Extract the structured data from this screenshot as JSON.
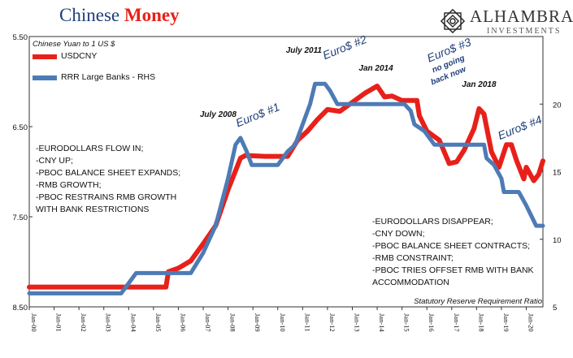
{
  "title": {
    "part1": "Chinese",
    "part2": "Money"
  },
  "logo": {
    "name": "ALHAMBRA",
    "sub": "INVESTMENTS"
  },
  "notes": {
    "left": [
      "-EURODOLLARS FLOW IN;",
      "-CNY UP;",
      "-PBOC BALANCE SHEET EXPANDS;",
      "-RMB GROWTH;",
      "-PBOC RESTRAINS RMB GROWTH",
      "WITH BANK RESTRICTIONS"
    ],
    "right": [
      "-EURODOLLARS DISAPPEAR;",
      "-CNY DOWN;",
      "-PBOC BALANCE SHEET CONTRACTS;",
      "-RMB CONSTRAINT;",
      "-PBOC TRIES OFFSET RMB WITH BANK",
      "ACCOMMODATION"
    ]
  },
  "colors": {
    "usdcny": "#e8201a",
    "rrr": "#4d7bb5",
    "title_blue": "#1f3f7a"
  },
  "chart_data": {
    "type": "line",
    "ylabel": "Chinese Yuan to 1 US $",
    "y2label": "Statutory Reserve Requirement Ratio",
    "y_axis": {
      "min": 5.5,
      "max": 8.5,
      "inverted": true,
      "ticks": [
        5.5,
        6.5,
        7.5,
        8.5
      ],
      "tick_labels": [
        "5.50",
        "6.50",
        "7.50",
        "8.50"
      ]
    },
    "y2_axis": {
      "min": 5,
      "max": 25,
      "ticks": [
        5,
        10,
        15,
        20
      ],
      "tick_labels": [
        "5",
        "10",
        "15",
        "20"
      ]
    },
    "x_axis": {
      "min": 2000.0,
      "max": 2020.67,
      "ticks": [
        2000,
        2001,
        2002,
        2003,
        2004,
        2005,
        2006,
        2007,
        2008,
        2009,
        2010,
        2011,
        2012,
        2013,
        2014,
        2015,
        2016,
        2017,
        2018,
        2019,
        2020
      ],
      "tick_labels": [
        "Jan-00",
        "Jan-01",
        "Jan-02",
        "Jan-03",
        "Jan-04",
        "Jan-05",
        "Jan-06",
        "Jan-07",
        "Jan-08",
        "Jan-09",
        "Jan-10",
        "Jan-11",
        "Jan-12",
        "Jan-13",
        "Jan-14",
        "Jan-15",
        "Jan-16",
        "Jan-17",
        "Jan-18",
        "Jan-19",
        "Jan-20"
      ]
    },
    "grid": false,
    "series": [
      {
        "name": "USDCNY",
        "axis": "left",
        "x": [
          2000.0,
          2005.5,
          2005.6,
          2006.0,
          2006.5,
          2007.0,
          2007.5,
          2008.0,
          2008.5,
          2008.7,
          2009.5,
          2010.4,
          2010.8,
          2011.2,
          2011.6,
          2012.0,
          2012.5,
          2013.0,
          2013.5,
          2014.0,
          2014.3,
          2014.6,
          2015.0,
          2015.6,
          2015.7,
          2016.0,
          2016.5,
          2016.9,
          2017.2,
          2017.5,
          2017.9,
          2018.1,
          2018.3,
          2018.6,
          2018.9,
          2019.2,
          2019.4,
          2019.6,
          2019.9,
          2020.0,
          2020.3,
          2020.5,
          2020.67
        ],
        "y": [
          8.28,
          8.28,
          8.11,
          8.07,
          7.99,
          7.8,
          7.6,
          7.2,
          6.85,
          6.82,
          6.83,
          6.83,
          6.65,
          6.55,
          6.42,
          6.31,
          6.33,
          6.23,
          6.13,
          6.05,
          6.17,
          6.16,
          6.21,
          6.21,
          6.38,
          6.55,
          6.65,
          6.91,
          6.89,
          6.76,
          6.52,
          6.3,
          6.36,
          6.78,
          6.95,
          6.7,
          6.7,
          6.87,
          7.08,
          6.95,
          7.1,
          7.03,
          6.88
        ]
      },
      {
        "name": "RRR Large Banks - RHS",
        "axis": "right",
        "x": [
          2000.0,
          2003.7,
          2004.3,
          2006.5,
          2007.0,
          2007.5,
          2008.0,
          2008.3,
          2008.5,
          2008.75,
          2008.95,
          2010.0,
          2010.4,
          2010.7,
          2010.9,
          2011.1,
          2011.3,
          2011.5,
          2011.9,
          2012.1,
          2012.4,
          2015.1,
          2015.35,
          2015.5,
          2015.9,
          2016.3,
          2016.9,
          2017.1,
          2018.3,
          2018.4,
          2018.7,
          2019.0,
          2019.1,
          2019.7,
          2020.0,
          2020.4,
          2020.67
        ],
        "y": [
          6,
          6,
          7.5,
          7.5,
          9,
          11,
          14.5,
          17,
          17.5,
          16.5,
          15.5,
          15.5,
          16.5,
          17,
          18,
          19,
          20,
          21.5,
          21.5,
          21,
          20,
          20,
          19.5,
          18.5,
          18,
          17,
          17,
          17,
          17,
          16,
          15.5,
          14.5,
          13.5,
          13.5,
          12.5,
          11,
          11
        ]
      }
    ],
    "annotations": [
      {
        "text": "July 2008",
        "x": 2007.6,
        "y": 6.39,
        "style": "label"
      },
      {
        "text": "Euro$ #1",
        "x": 2009.25,
        "y": 6.41,
        "style": "callout"
      },
      {
        "text": "July 2011",
        "x": 2011.05,
        "y": 5.68,
        "style": "label"
      },
      {
        "text": "Euro$ #2",
        "x": 2012.75,
        "y": 5.66,
        "style": "callout"
      },
      {
        "text": "Jan 2014",
        "x": 2013.95,
        "y": 5.88,
        "style": "label"
      },
      {
        "text": "Euro$ #3",
        "x": 2016.95,
        "y": 5.69,
        "style": "callout"
      },
      {
        "text": "no going",
        "x": 2016.9,
        "y": 5.83,
        "style": "sub"
      },
      {
        "text": "back now",
        "x": 2016.9,
        "y": 5.96,
        "style": "sub"
      },
      {
        "text": "Jan 2018",
        "x": 2018.1,
        "y": 6.06,
        "style": "label"
      },
      {
        "text": "Euro$ #4",
        "x": 2019.8,
        "y": 6.55,
        "style": "callout"
      }
    ]
  }
}
